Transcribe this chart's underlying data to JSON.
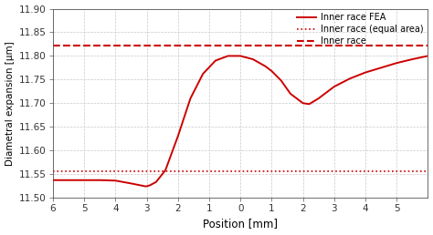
{
  "xlabel": "Position [mm]",
  "ylabel": "Diametral expansion [µm]",
  "line_color": "#cc0000",
  "dotted_value": 11.555,
  "dashed_value": 11.822,
  "ylim": [
    11.5,
    11.9
  ],
  "xlim": [
    -6,
    6
  ],
  "xticks": [
    -6,
    -5,
    -4,
    -3,
    -2,
    -1,
    0,
    1,
    2,
    3,
    4,
    5
  ],
  "yticks": [
    11.5,
    11.55,
    11.6,
    11.65,
    11.7,
    11.75,
    11.8,
    11.85,
    11.9
  ],
  "legend_labels": [
    "Inner race FEA",
    "Inner race (equal area)",
    "Inner race"
  ],
  "fea_curve_x": [
    -6,
    -5.5,
    -5,
    -4.5,
    -4,
    -3.5,
    -3.05,
    -3.0,
    -2.9,
    -2.7,
    -2.4,
    -2.0,
    -1.6,
    -1.2,
    -0.8,
    -0.4,
    0,
    0.4,
    0.8,
    1.0,
    1.3,
    1.6,
    2.0,
    2.2,
    2.5,
    3.0,
    3.5,
    4.0,
    4.5,
    5.0,
    5.5,
    6.0
  ],
  "fea_curve_y": [
    11.537,
    11.537,
    11.537,
    11.537,
    11.536,
    11.53,
    11.524,
    11.524,
    11.526,
    11.533,
    11.558,
    11.63,
    11.71,
    11.762,
    11.79,
    11.8,
    11.8,
    11.793,
    11.778,
    11.768,
    11.748,
    11.72,
    11.7,
    11.698,
    11.71,
    11.735,
    11.752,
    11.765,
    11.775,
    11.785,
    11.793,
    11.8
  ]
}
